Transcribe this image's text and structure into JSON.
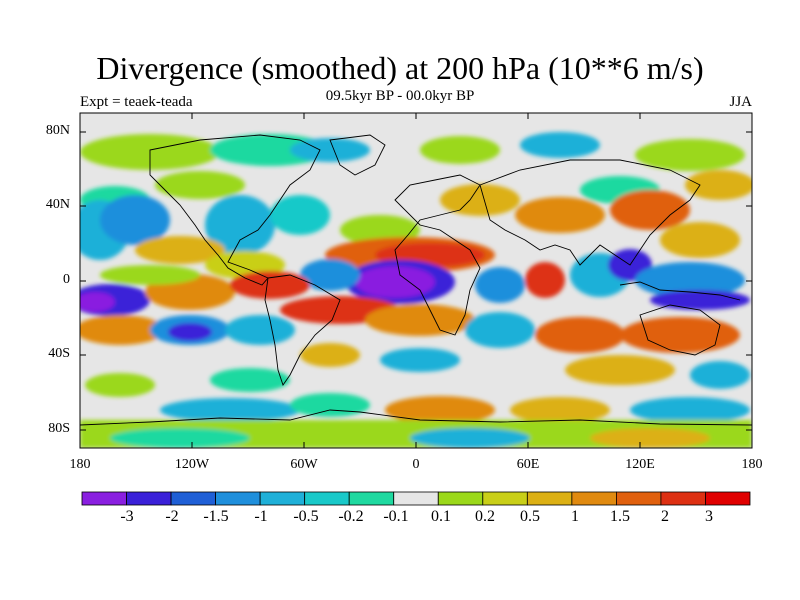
{
  "title": "Divergence (smoothed) at 200 hPa (10**6 m/s)",
  "experiment": "Expt = teaek-teada",
  "period": "09.5kyr BP - 00.0kyr BP",
  "season": "JJA",
  "lat_ticks": [
    "80N",
    "40N",
    "0",
    "40S",
    "80S"
  ],
  "lon_ticks": [
    "180",
    "120W",
    "60W",
    "0",
    "60E",
    "120E",
    "180"
  ],
  "colorbar": {
    "labels": [
      "-3",
      "-2",
      "-1.5",
      "-1",
      "-0.5",
      "-0.2",
      "-0.1",
      "0.1",
      "0.2",
      "0.5",
      "1",
      "1.5",
      "2",
      "3"
    ],
    "colors": [
      "#8a1fe0",
      "#3a20d8",
      "#1f5fd6",
      "#1f8fdc",
      "#1fb0d8",
      "#19c9c9",
      "#1fd9a0",
      "#e6e6e6",
      "#9bd81a",
      "#c9cf18",
      "#dcb014",
      "#e08a10",
      "#e0600e",
      "#dd3012",
      "#e00000"
    ]
  }
}
